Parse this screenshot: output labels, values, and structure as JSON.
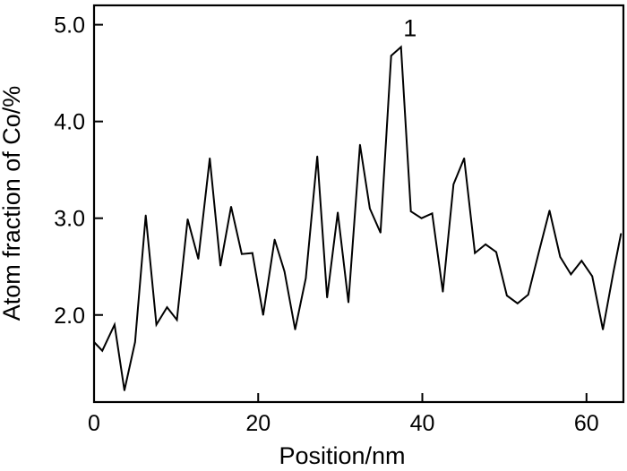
{
  "chart_data": {
    "type": "line",
    "title": "",
    "xlabel": "Position/nm",
    "ylabel": "Atom fraction of Co/%",
    "xlim": [
      0,
      64.5
    ],
    "ylim": [
      1.1,
      5.2
    ],
    "xticks": [
      0,
      20,
      40,
      60
    ],
    "xtick_labels": [
      "0",
      "20",
      "40",
      "60"
    ],
    "yticks": [
      2.0,
      3.0,
      4.0,
      5.0
    ],
    "ytick_labels": [
      "2.0",
      "3.0",
      "4.0",
      "5.0"
    ],
    "grid": false,
    "legend": "none",
    "line_color": "#000000",
    "annotations": [
      {
        "text": "1",
        "x": 38.5,
        "y": 4.88
      }
    ],
    "series": [
      {
        "x": [
          0,
          1,
          2.5,
          3.7,
          5,
          6.3,
          7.6,
          8.9,
          10.1,
          11.4,
          12.7,
          14.1,
          15.4,
          16.7,
          18,
          19.3,
          20.6,
          22,
          23.2,
          24.5,
          25.8,
          27.2,
          28.4,
          29.7,
          31,
          32.4,
          33.6,
          34.9,
          36.2,
          37.4,
          38.6,
          39.9,
          41.2,
          42.5,
          43.8,
          45.1,
          46.4,
          47.7,
          49,
          50.3,
          51.6,
          52.9,
          54.2,
          55.5,
          56.8,
          58.1,
          59.4,
          60.7,
          62,
          63.3,
          64.2
        ],
        "y": [
          1.72,
          1.63,
          1.9,
          1.22,
          1.72,
          3.03,
          1.9,
          2.08,
          1.95,
          2.99,
          2.58,
          3.62,
          2.51,
          3.12,
          2.63,
          2.64,
          2.0,
          2.78,
          2.45,
          1.85,
          2.38,
          3.64,
          2.18,
          3.06,
          2.13,
          3.76,
          3.1,
          2.85,
          4.68,
          4.77,
          3.07,
          3.0,
          3.05,
          2.24,
          3.35,
          3.62,
          2.64,
          2.73,
          2.65,
          2.2,
          2.12,
          2.21,
          2.65,
          3.08,
          2.6,
          2.42,
          2.56,
          2.4,
          1.85,
          2.45,
          2.84
        ]
      }
    ]
  }
}
